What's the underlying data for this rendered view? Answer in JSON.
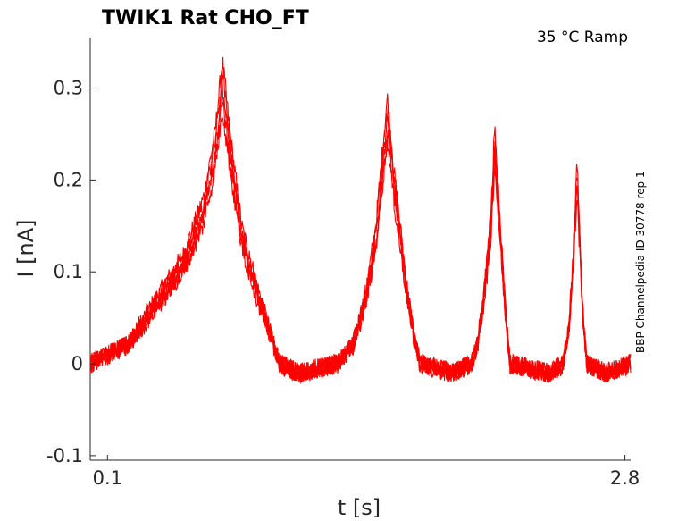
{
  "chart_data": {
    "type": "line",
    "title": "TWIK1  Rat  CHO_FT",
    "condition": "35 °C  Ramp",
    "side_label": "BBP Channelpedia ID 30778 rep 1",
    "xlabel": "t [s]",
    "ylabel": "I [nA]",
    "xlim": [
      0.01,
      2.83
    ],
    "ylim": [
      -0.105,
      0.355
    ],
    "xticks": [
      "0.1",
      "2.8"
    ],
    "yticks": [
      "-0.1",
      "0",
      "0.1",
      "0.2",
      "0.3"
    ],
    "color": "#ff0000",
    "grid": false,
    "series": [
      {
        "values_description": "",
        "points": [
          [
            0.01,
            0.0
          ],
          [
            0.2,
            0.02
          ],
          [
            0.35,
            0.07
          ],
          [
            0.5,
            0.12
          ],
          [
            0.6,
            0.18
          ],
          [
            0.66,
            0.25
          ],
          [
            0.7,
            0.33
          ],
          [
            0.74,
            0.25
          ],
          [
            0.8,
            0.15
          ],
          [
            0.9,
            0.07
          ],
          [
            0.97,
            0.02
          ],
          [
            1.0,
            0.0
          ],
          [
            1.1,
            -0.01
          ],
          [
            1.3,
            0.0
          ],
          [
            1.38,
            0.02
          ],
          [
            1.45,
            0.08
          ],
          [
            1.5,
            0.15
          ],
          [
            1.53,
            0.22
          ],
          [
            1.56,
            0.29
          ],
          [
            1.6,
            0.2
          ],
          [
            1.66,
            0.09
          ],
          [
            1.7,
            0.03
          ],
          [
            1.73,
            0.0
          ],
          [
            1.9,
            -0.01
          ],
          [
            2.0,
            0.0
          ],
          [
            2.03,
            0.02
          ],
          [
            2.07,
            0.09
          ],
          [
            2.1,
            0.16
          ],
          [
            2.12,
            0.26
          ],
          [
            2.15,
            0.15
          ],
          [
            2.18,
            0.05
          ],
          [
            2.2,
            0.0
          ],
          [
            2.4,
            -0.01
          ],
          [
            2.48,
            0.0
          ],
          [
            2.51,
            0.05
          ],
          [
            2.53,
            0.12
          ],
          [
            2.55,
            0.22
          ],
          [
            2.58,
            0.06
          ],
          [
            2.6,
            0.0
          ],
          [
            2.7,
            -0.01
          ],
          [
            2.83,
            0.0
          ]
        ]
      }
    ]
  }
}
